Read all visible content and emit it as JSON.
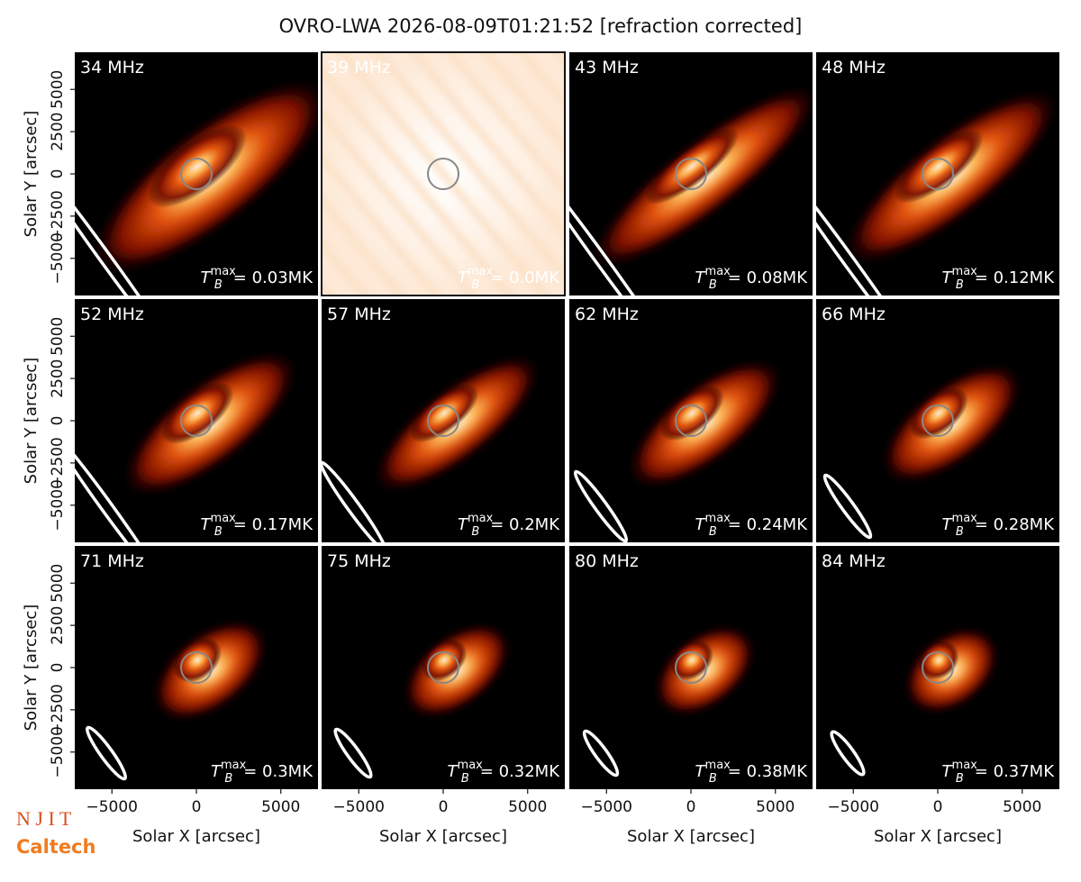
{
  "chart_data": {
    "type": "image_grid",
    "title": "OVRO-LWA 2026-08-09T01:21:52 [refraction corrected]",
    "xlabel": "Solar X [arcsec]",
    "ylabel": "Solar Y [arcsec]",
    "xlim": [
      -7200,
      7200
    ],
    "ylim": [
      -7200,
      7200
    ],
    "xticks": [
      {
        "value": -5000,
        "label": "−5000"
      },
      0,
      5000
    ],
    "yticks": [
      {
        "value": -5000,
        "label": "−5000"
      },
      {
        "value": -2500,
        "label": "−2500"
      },
      0,
      2500,
      5000
    ],
    "tmax_symbol": {
      "base": "T",
      "sub": "B",
      "sup": "max"
    },
    "panels": [
      {
        "label": "34 MHz",
        "tmax": "= 0.03MK"
      },
      {
        "label": "39 MHz",
        "tmax": "= 0.0MK"
      },
      {
        "label": "43 MHz",
        "tmax": "= 0.08MK"
      },
      {
        "label": "48 MHz",
        "tmax": "= 0.12MK"
      },
      {
        "label": "52 MHz",
        "tmax": "= 0.17MK"
      },
      {
        "label": "57 MHz",
        "tmax": "= 0.2MK"
      },
      {
        "label": "62 MHz",
        "tmax": "= 0.24MK"
      },
      {
        "label": "66 MHz",
        "tmax": "= 0.28MK"
      },
      {
        "label": "71 MHz",
        "tmax": "= 0.3MK"
      },
      {
        "label": "75 MHz",
        "tmax": "= 0.32MK"
      },
      {
        "label": "80 MHz",
        "tmax": "= 0.38MK"
      },
      {
        "label": "84 MHz",
        "tmax": "= 0.37MK"
      }
    ]
  },
  "logos": [
    "N J I T",
    "Caltech"
  ]
}
